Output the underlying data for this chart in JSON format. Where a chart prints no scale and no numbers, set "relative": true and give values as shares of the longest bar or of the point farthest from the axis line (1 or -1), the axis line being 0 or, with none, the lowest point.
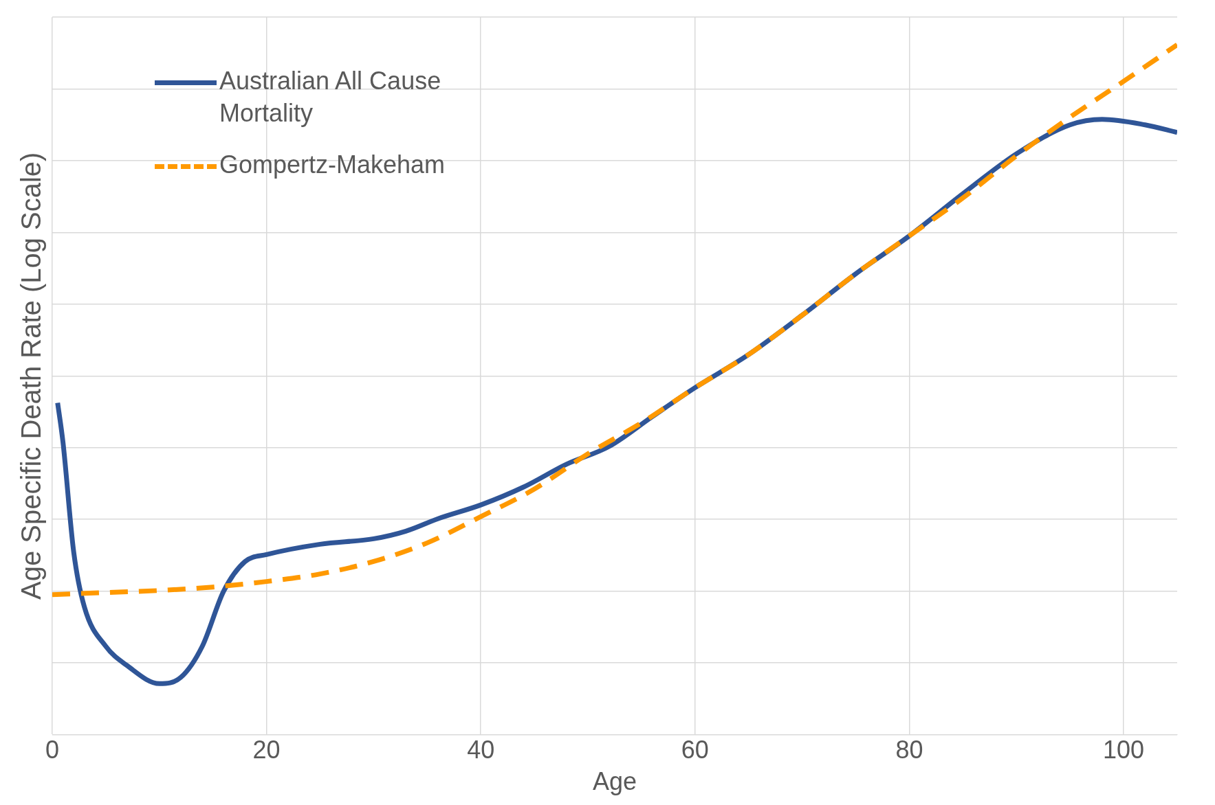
{
  "chart_data": {
    "type": "line",
    "xlabel": "Age",
    "ylabel": "Age Specific Death Rate (Log Scale)",
    "relative": true,
    "xlim": [
      0,
      105
    ],
    "xticks": [
      0,
      20,
      40,
      60,
      80,
      100
    ],
    "grid": true,
    "legend": "top left",
    "marker": "none",
    "series": [
      {
        "name": "Australian All Cause Mortality",
        "color": "#2f5597",
        "line_style": "solid",
        "x": [
          0.5,
          1,
          2,
          3,
          5,
          7,
          10,
          12,
          14,
          16,
          18,
          20,
          25,
          30,
          33,
          36,
          40,
          44,
          48,
          52,
          56,
          60,
          65,
          70,
          75,
          80,
          85,
          90,
          95,
          98,
          102,
          105
        ],
        "values": [
          0.481,
          0.424,
          0.265,
          0.185,
          0.128,
          0.1,
          0.074,
          0.083,
          0.128,
          0.208,
          0.251,
          0.261,
          0.276,
          0.284,
          0.295,
          0.313,
          0.333,
          0.359,
          0.392,
          0.418,
          0.461,
          0.503,
          0.551,
          0.608,
          0.668,
          0.723,
          0.784,
          0.842,
          0.884,
          0.892,
          0.884,
          0.873
        ]
      },
      {
        "name": "Gompertz-Makeham",
        "color": "#ff9900",
        "line_style": "dashed",
        "x": [
          0,
          5,
          10,
          15,
          20,
          25,
          30,
          35,
          40,
          45,
          50,
          55,
          60,
          65,
          70,
          75,
          80,
          85,
          90,
          95,
          100,
          105
        ],
        "values": [
          0.203,
          0.206,
          0.209,
          0.214,
          0.222,
          0.233,
          0.251,
          0.278,
          0.316,
          0.356,
          0.407,
          0.452,
          0.503,
          0.551,
          0.608,
          0.668,
          0.723,
          0.778,
          0.839,
          0.895,
          0.947,
          1.0
        ]
      }
    ]
  }
}
